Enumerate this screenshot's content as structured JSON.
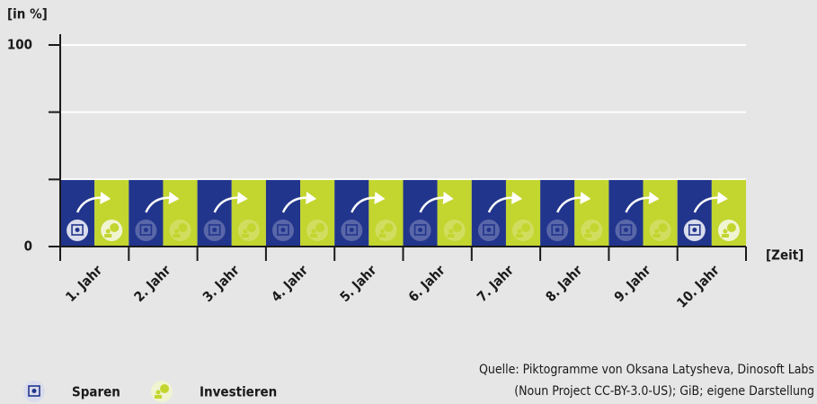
{
  "chart_data": {
    "type": "bar",
    "y_axis_label": "[in %]",
    "x_axis_label": "[Zeit]",
    "categories": [
      "1. Jahr",
      "2. Jahr",
      "3. Jahr",
      "4. Jahr",
      "5. Jahr",
      "6. Jahr",
      "7. Jahr",
      "8. Jahr",
      "9. Jahr",
      "10. Jahr"
    ],
    "series": [
      {
        "name": "Sparen",
        "color": "#22358c",
        "values": [
          33,
          33,
          33,
          33,
          33,
          33,
          33,
          33,
          33,
          33
        ]
      },
      {
        "name": "Investieren",
        "color": "#c3d52f",
        "values": [
          33,
          33,
          33,
          33,
          33,
          33,
          33,
          33,
          33,
          33
        ]
      }
    ],
    "ylim": [
      0,
      100
    ],
    "yticks": [
      0,
      100
    ],
    "minor_yticks": [
      33.3,
      66.7
    ],
    "grid": true,
    "source": [
      "Quelle:  Piktogramme von Oksana Latysheva, Dinosoft Labs",
      "(Noun Project CC-BY-3.0-US); GiB; eigene Darstellung"
    ]
  }
}
